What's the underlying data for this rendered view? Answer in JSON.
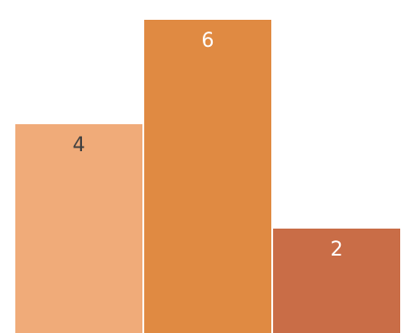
{
  "chart_data": {
    "type": "bar",
    "categories": [
      "",
      "",
      ""
    ],
    "values": [
      4,
      6,
      2
    ],
    "ylim": [
      0,
      6.2
    ],
    "grid": false,
    "colors": [
      "#F0AB79",
      "#E08A42",
      "#C96D47"
    ],
    "label_colors": [
      "#404040",
      "#ffffff",
      "#ffffff"
    ],
    "data_labels": [
      "4",
      "6",
      "2"
    ],
    "title": "",
    "xlabel": "",
    "ylabel": ""
  }
}
